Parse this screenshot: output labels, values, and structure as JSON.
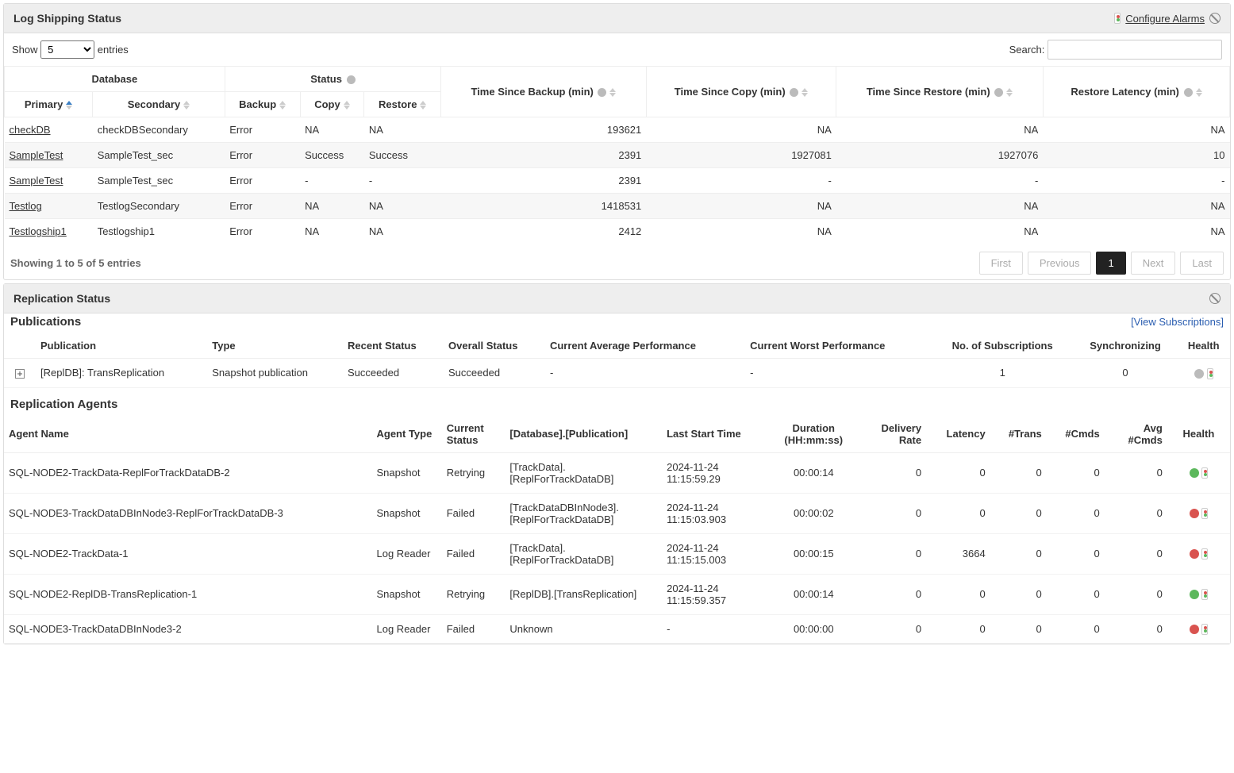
{
  "log_panel": {
    "title": "Log Shipping Status",
    "configure_label": "Configure Alarms",
    "show_label_pre": "Show",
    "show_value": "5",
    "show_label_post": "entries",
    "search_label": "Search:",
    "columns": {
      "database": "Database",
      "status": "Status",
      "primary": "Primary",
      "secondary": "Secondary",
      "backup": "Backup",
      "copy": "Copy",
      "restore": "Restore",
      "time_backup": "Time Since Backup (min)",
      "time_copy": "Time Since Copy (min)",
      "time_restore": "Time Since Restore (min)",
      "restore_latency": "Restore Latency (min)"
    },
    "rows": [
      {
        "primary": "checkDB",
        "secondary": "checkDBSecondary",
        "backup": "Error",
        "copy": "NA",
        "restore": "NA",
        "t_backup": "193621",
        "t_copy": "NA",
        "t_restore": "NA",
        "latency": "NA"
      },
      {
        "primary": "SampleTest",
        "secondary": "SampleTest_sec",
        "backup": "Error",
        "copy": "Success",
        "restore": "Success",
        "t_backup": "2391",
        "t_copy": "1927081",
        "t_restore": "1927076",
        "latency": "10"
      },
      {
        "primary": "SampleTest",
        "secondary": "SampleTest_sec",
        "backup": "Error",
        "copy": "-",
        "restore": "-",
        "t_backup": "2391",
        "t_copy": "-",
        "t_restore": "-",
        "latency": "-"
      },
      {
        "primary": "Testlog",
        "secondary": "TestlogSecondary",
        "backup": "Error",
        "copy": "NA",
        "restore": "NA",
        "t_backup": "1418531",
        "t_copy": "NA",
        "t_restore": "NA",
        "latency": "NA"
      },
      {
        "primary": "Testlogship1",
        "secondary": "Testlogship1",
        "backup": "Error",
        "copy": "NA",
        "restore": "NA",
        "t_backup": "2412",
        "t_copy": "NA",
        "t_restore": "NA",
        "latency": "NA"
      }
    ],
    "info_text": "Showing 1 to 5 of 5 entries",
    "pagination": {
      "first": "First",
      "prev": "Previous",
      "page": "1",
      "next": "Next",
      "last": "Last"
    }
  },
  "repl_panel": {
    "title": "Replication Status",
    "publications_title": "Publications",
    "view_subscriptions": "[View Subscriptions]",
    "pub_columns": {
      "publication": "Publication",
      "type": "Type",
      "recent_status": "Recent Status",
      "overall_status": "Overall Status",
      "cur_avg_perf": "Current Average Performance",
      "cur_worst_perf": "Current Worst Performance",
      "num_subs": "No. of Subscriptions",
      "sync": "Synchronizing",
      "health": "Health"
    },
    "pub_rows": [
      {
        "publication": "[ReplDB]: TransReplication",
        "type": "Snapshot publication",
        "recent": "Succeeded",
        "overall": "Succeeded",
        "avg_perf": "-",
        "worst_perf": "-",
        "subs": "1",
        "sync": "0",
        "health_dot": "grey"
      }
    ],
    "agents_title": "Replication Agents",
    "agent_columns": {
      "name": "Agent Name",
      "type": "Agent Type",
      "status": "Current Status",
      "db_pub": "[Database].[Publication]",
      "last_start": "Last Start Time",
      "duration": "Duration (HH:mm:ss)",
      "delivery": "Delivery Rate",
      "latency": "Latency",
      "trans": "#Trans",
      "cmds": "#Cmds",
      "avg_cmds": "Avg #Cmds",
      "health": "Health"
    },
    "agent_rows": [
      {
        "name": "SQL-NODE2-TrackData-ReplForTrackDataDB-2",
        "type": "Snapshot",
        "status": "Retrying",
        "db_pub": "[TrackData].[ReplForTrackDataDB]",
        "last_start": "2024-11-24 11:15:59.29",
        "duration": "00:00:14",
        "delivery": "0",
        "latency": "0",
        "trans": "0",
        "cmds": "0",
        "avg_cmds": "0",
        "dot": "green"
      },
      {
        "name": "SQL-NODE3-TrackDataDBInNode3-ReplForTrackDataDB-3",
        "type": "Snapshot",
        "status": "Failed",
        "db_pub": "[TrackDataDBInNode3].[ReplForTrackDataDB]",
        "last_start": "2024-11-24 11:15:03.903",
        "duration": "00:00:02",
        "delivery": "0",
        "latency": "0",
        "trans": "0",
        "cmds": "0",
        "avg_cmds": "0",
        "dot": "red"
      },
      {
        "name": "SQL-NODE2-TrackData-1",
        "type": "Log Reader",
        "status": "Failed",
        "db_pub": "[TrackData].[ReplForTrackDataDB]",
        "last_start": "2024-11-24 11:15:15.003",
        "duration": "00:00:15",
        "delivery": "0",
        "latency": "3664",
        "trans": "0",
        "cmds": "0",
        "avg_cmds": "0",
        "dot": "red"
      },
      {
        "name": "SQL-NODE2-ReplDB-TransReplication-1",
        "type": "Snapshot",
        "status": "Retrying",
        "db_pub": "[ReplDB].[TransReplication]",
        "last_start": "2024-11-24 11:15:59.357",
        "duration": "00:00:14",
        "delivery": "0",
        "latency": "0",
        "trans": "0",
        "cmds": "0",
        "avg_cmds": "0",
        "dot": "green"
      },
      {
        "name": "SQL-NODE3-TrackDataDBInNode3-2",
        "type": "Log Reader",
        "status": "Failed",
        "db_pub": "Unknown",
        "last_start": "-",
        "duration": "00:00:00",
        "delivery": "0",
        "latency": "0",
        "trans": "0",
        "cmds": "0",
        "avg_cmds": "0",
        "dot": "red"
      }
    ]
  }
}
